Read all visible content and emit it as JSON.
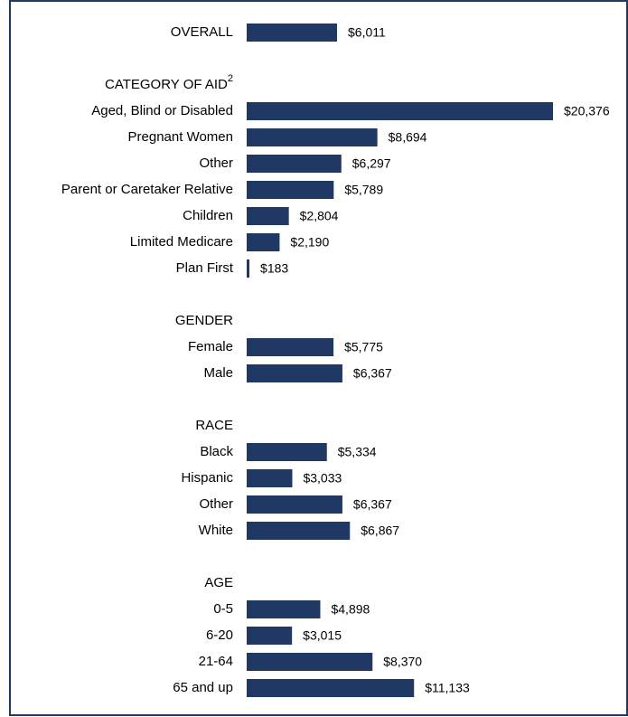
{
  "chart_data": {
    "type": "bar",
    "orientation": "horizontal",
    "color": "#1f3864",
    "groups": [
      {
        "categories": [
          "OVERALL"
        ],
        "values": [
          6011
        ],
        "value_labels": [
          "$6,011"
        ]
      },
      {
        "name": "CATEGORY OF AID",
        "footnote": "2",
        "categories": [
          "Aged, Blind or Disabled",
          "Pregnant Women",
          "Other",
          "Parent or Caretaker Relative",
          "Children",
          "Limited Medicare",
          "Plan First"
        ],
        "values": [
          20376,
          8694,
          6297,
          5789,
          2804,
          2190,
          183
        ],
        "value_labels": [
          "$20,376",
          "$8,694",
          "$6,297",
          "$5,789",
          "$2,804",
          "$2,190",
          "$183"
        ]
      },
      {
        "name": "GENDER",
        "categories": [
          "Female",
          "Male"
        ],
        "values": [
          5775,
          6367
        ],
        "value_labels": [
          "$5,775",
          "$6,367"
        ]
      },
      {
        "name": "RACE",
        "categories": [
          "Black",
          "Hispanic",
          "Other",
          "White"
        ],
        "values": [
          5334,
          3033,
          6367,
          6867
        ],
        "value_labels": [
          "$5,334",
          "$3,033",
          "$6,367",
          "$6,867"
        ]
      },
      {
        "name": "AGE",
        "categories": [
          "0-5",
          "6-20",
          "21-64",
          "65 and up"
        ],
        "values": [
          4898,
          3015,
          8370,
          11133
        ],
        "value_labels": [
          "$4,898",
          "$3,015",
          "$8,370",
          "$11,133"
        ]
      }
    ]
  }
}
